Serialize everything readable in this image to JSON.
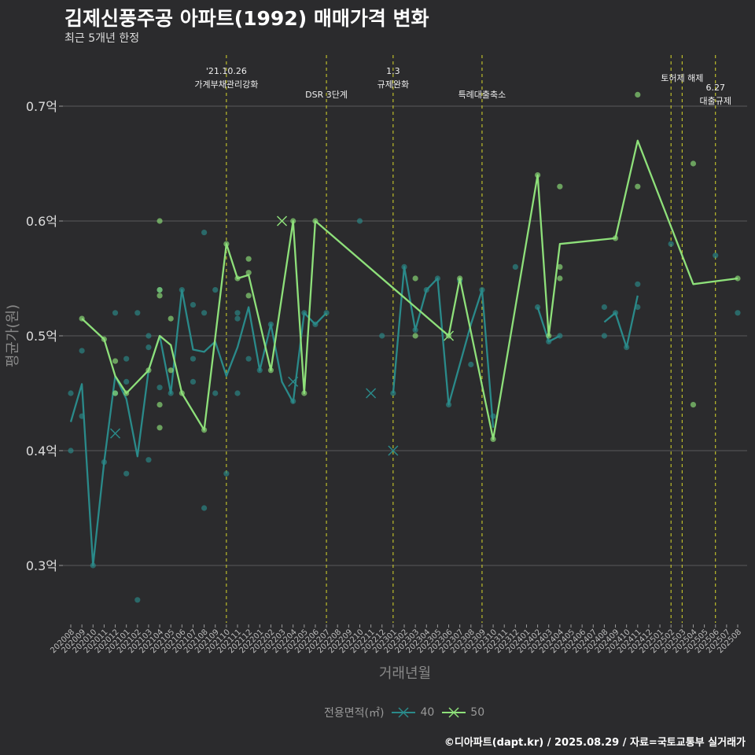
{
  "title": "김제신풍주공 아파트(1992) 매매가격 변화",
  "subtitle": "최근 5개년 한정",
  "caption": "©디아파트(dapt.kr) / 2025.08.29 / 자료=국토교통부 실거래가",
  "colors": {
    "background": "#2b2b2d",
    "s40": "#2a8a8a",
    "s50": "#8ee07a",
    "event": "#d8d82a",
    "grid": "#5a5a5a"
  },
  "chart_data": {
    "type": "line",
    "xlabel": "거래년월",
    "ylabel": "평균가(원)",
    "ylim": [
      0.25,
      0.75
    ],
    "yticks": [
      0.3,
      0.4,
      0.5,
      0.6,
      0.7
    ],
    "ytick_labels": [
      "0.3억",
      "0.4억",
      "0.5억",
      "0.6억",
      "0.7억"
    ],
    "categories": [
      "202008",
      "202009",
      "202010",
      "202011",
      "202012",
      "202101",
      "202102",
      "202103",
      "202104",
      "202105",
      "202106",
      "202107",
      "202108",
      "202109",
      "202110",
      "202111",
      "202112",
      "202201",
      "202202",
      "202203",
      "202204",
      "202205",
      "202206",
      "202207",
      "202208",
      "202209",
      "202210",
      "202211",
      "202212",
      "202301",
      "202302",
      "202303",
      "202304",
      "202305",
      "202306",
      "202307",
      "202308",
      "202309",
      "202310",
      "202311",
      "202312",
      "202401",
      "202402",
      "202403",
      "202404",
      "202405",
      "202406",
      "202407",
      "202408",
      "202409",
      "202410",
      "202411",
      "202412",
      "202501",
      "202502",
      "202503",
      "202504",
      "202505",
      "202506",
      "202507",
      "202508"
    ],
    "legend_title": "전용면적(㎡)",
    "series": [
      {
        "name": "40",
        "color": "#2a8a8a",
        "line": [
          [
            "202008",
            0.425
          ],
          [
            "202009",
            0.458
          ],
          [
            "202010",
            0.3
          ],
          [
            "202011",
            0.39
          ],
          [
            "202012",
            0.465
          ],
          [
            "202101",
            0.445
          ],
          [
            "202102",
            0.395
          ],
          [
            "202103",
            0.47
          ],
          [
            "202104",
            0.5
          ],
          [
            "202105",
            0.45
          ],
          [
            "202106",
            0.54
          ],
          [
            "202107",
            0.488
          ],
          [
            "202108",
            0.486
          ],
          [
            "202109",
            0.495
          ],
          [
            "202110",
            0.465
          ],
          [
            "202111",
            0.49
          ],
          [
            "202112",
            0.525
          ],
          [
            "202201",
            0.47
          ],
          [
            "202202",
            0.51
          ],
          [
            "202203",
            0.46
          ],
          [
            "202204",
            0.442
          ],
          [
            "202205",
            0.52
          ],
          [
            "202206",
            0.51
          ],
          [
            "202207",
            0.52
          ],
          null,
          [
            "202301",
            0.45
          ],
          [
            "202302",
            0.56
          ],
          [
            "202303",
            0.505
          ],
          [
            "202304",
            0.54
          ],
          [
            "202305",
            0.55
          ],
          [
            "202306",
            0.44
          ],
          [
            "202308",
            0.51
          ],
          [
            "202309",
            0.54
          ],
          [
            "202310",
            0.42
          ],
          null,
          [
            "202402",
            0.525
          ],
          [
            "202403",
            0.495
          ],
          [
            "202404",
            0.5
          ],
          null,
          [
            "202408",
            0.512
          ],
          [
            "202409",
            0.52
          ],
          [
            "202410",
            0.49
          ],
          [
            "202411",
            0.535
          ]
        ],
        "points": [
          [
            "202008",
            0.45
          ],
          [
            "202008",
            0.4
          ],
          [
            "202009",
            0.487
          ],
          [
            "202009",
            0.43
          ],
          [
            "202010",
            0.3
          ],
          [
            "202011",
            0.39
          ],
          [
            "202012",
            0.45
          ],
          [
            "202012",
            0.52
          ],
          [
            "202101",
            0.48
          ],
          [
            "202101",
            0.46
          ],
          [
            "202101",
            0.38
          ],
          [
            "202102",
            0.52
          ],
          [
            "202102",
            0.27
          ],
          [
            "202103",
            0.49
          ],
          [
            "202103",
            0.5
          ],
          [
            "202103",
            0.392
          ],
          [
            "202104",
            0.455
          ],
          [
            "202104",
            0.54
          ],
          [
            "202105",
            0.45
          ],
          [
            "202106",
            0.54
          ],
          [
            "202107",
            0.527
          ],
          [
            "202107",
            0.46
          ],
          [
            "202107",
            0.48
          ],
          [
            "202108",
            0.52
          ],
          [
            "202108",
            0.59
          ],
          [
            "202108",
            0.35
          ],
          [
            "202109",
            0.54
          ],
          [
            "202109",
            0.45
          ],
          [
            "202110",
            0.38
          ],
          [
            "202111",
            0.515
          ],
          [
            "202111",
            0.52
          ],
          [
            "202111",
            0.45
          ],
          [
            "202112",
            0.48
          ],
          [
            "202201",
            0.47
          ],
          [
            "202202",
            0.51
          ],
          [
            "202204",
            0.443
          ],
          [
            "202205",
            0.52
          ],
          [
            "202206",
            0.51
          ],
          [
            "202207",
            0.52
          ],
          [
            "202210",
            0.6
          ],
          [
            "202212",
            0.5
          ],
          [
            "202301",
            0.45
          ],
          [
            "202302",
            0.56
          ],
          [
            "202303",
            0.505
          ],
          [
            "202304",
            0.54
          ],
          [
            "202305",
            0.55
          ],
          [
            "202306",
            0.44
          ],
          [
            "202307",
            0.548
          ],
          [
            "202308",
            0.475
          ],
          [
            "202309",
            0.54
          ],
          [
            "202310",
            0.43
          ],
          [
            "202312",
            0.56
          ],
          [
            "202402",
            0.525
          ],
          [
            "202403",
            0.495
          ],
          [
            "202404",
            0.5
          ],
          [
            "202408",
            0.5
          ],
          [
            "202408",
            0.525
          ],
          [
            "202409",
            0.52
          ],
          [
            "202410",
            0.49
          ],
          [
            "202411",
            0.545
          ],
          [
            "202411",
            0.525
          ],
          [
            "202502",
            0.58
          ],
          [
            "202506",
            0.57
          ],
          [
            "202508",
            0.52
          ]
        ],
        "markers_x": [
          [
            "202012",
            0.415
          ],
          [
            "202204",
            0.46
          ],
          [
            "202211",
            0.45
          ],
          [
            "202301",
            0.4
          ]
        ]
      },
      {
        "name": "50",
        "color": "#8ee07a",
        "line": [
          [
            "202009",
            0.515
          ],
          [
            "202011",
            0.497
          ],
          [
            "202012",
            0.465
          ],
          [
            "202101",
            0.45
          ],
          [
            "202103",
            0.47
          ],
          [
            "202104",
            0.5
          ],
          [
            "202105",
            0.492
          ],
          [
            "202106",
            0.45
          ],
          [
            "202108",
            0.418
          ],
          [
            "202110",
            0.58
          ],
          [
            "202111",
            0.55
          ],
          [
            "202112",
            0.553
          ],
          [
            "202202",
            0.47
          ],
          [
            "202204",
            0.6
          ],
          [
            "202205",
            0.45
          ],
          [
            "202206",
            0.6
          ],
          [
            "202306",
            0.5
          ],
          [
            "202307",
            0.55
          ],
          [
            "202310",
            0.41
          ],
          [
            "202402",
            0.64
          ],
          [
            "202403",
            0.5
          ],
          [
            "202404",
            0.58
          ],
          [
            "202409",
            0.585
          ],
          [
            "202411",
            0.67
          ],
          [
            "202504",
            0.545
          ],
          [
            "202508",
            0.55
          ]
        ],
        "points": [
          [
            "202009",
            0.515
          ],
          [
            "202011",
            0.497
          ],
          [
            "202012",
            0.478
          ],
          [
            "202012",
            0.45
          ],
          [
            "202101",
            0.45
          ],
          [
            "202103",
            0.47
          ],
          [
            "202104",
            0.6
          ],
          [
            "202104",
            0.535
          ],
          [
            "202104",
            0.54
          ],
          [
            "202104",
            0.44
          ],
          [
            "202104",
            0.42
          ],
          [
            "202105",
            0.515
          ],
          [
            "202105",
            0.47
          ],
          [
            "202106",
            0.45
          ],
          [
            "202108",
            0.418
          ],
          [
            "202110",
            0.58
          ],
          [
            "202111",
            0.55
          ],
          [
            "202112",
            0.567
          ],
          [
            "202112",
            0.555
          ],
          [
            "202112",
            0.535
          ],
          [
            "202202",
            0.47
          ],
          [
            "202204",
            0.6
          ],
          [
            "202205",
            0.45
          ],
          [
            "202206",
            0.6
          ],
          [
            "202303",
            0.55
          ],
          [
            "202303",
            0.5
          ],
          [
            "202306",
            0.5
          ],
          [
            "202307",
            0.55
          ],
          [
            "202310",
            0.41
          ],
          [
            "202402",
            0.64
          ],
          [
            "202403",
            0.5
          ],
          [
            "202404",
            0.63
          ],
          [
            "202404",
            0.56
          ],
          [
            "202404",
            0.55
          ],
          [
            "202409",
            0.585
          ],
          [
            "202411",
            0.71
          ],
          [
            "202411",
            0.63
          ],
          [
            "202504",
            0.65
          ],
          [
            "202504",
            0.44
          ],
          [
            "202508",
            0.55
          ]
        ],
        "markers_x": [
          [
            "202203",
            0.6
          ],
          [
            "202306",
            0.5
          ]
        ]
      }
    ],
    "events": [
      {
        "date": "202110",
        "lines": [
          "'21.10.26",
          "가계부채관리강화"
        ],
        "row": 0
      },
      {
        "date": "202207",
        "lines": [
          "DSR 3단계"
        ],
        "row": 2
      },
      {
        "date": "202301",
        "lines": [
          "1.3",
          "규제완화"
        ],
        "row": 0
      },
      {
        "date": "202309",
        "lines": [
          "특례대출축소"
        ],
        "row": 2
      },
      {
        "date": "202502",
        "lines": [],
        "row": 1
      },
      {
        "date": "202503",
        "lines": [
          "토허제 해제"
        ],
        "row": 1
      },
      {
        "date": "202506",
        "lines": [
          "6.27",
          "대출규제"
        ],
        "row": 3
      }
    ]
  }
}
